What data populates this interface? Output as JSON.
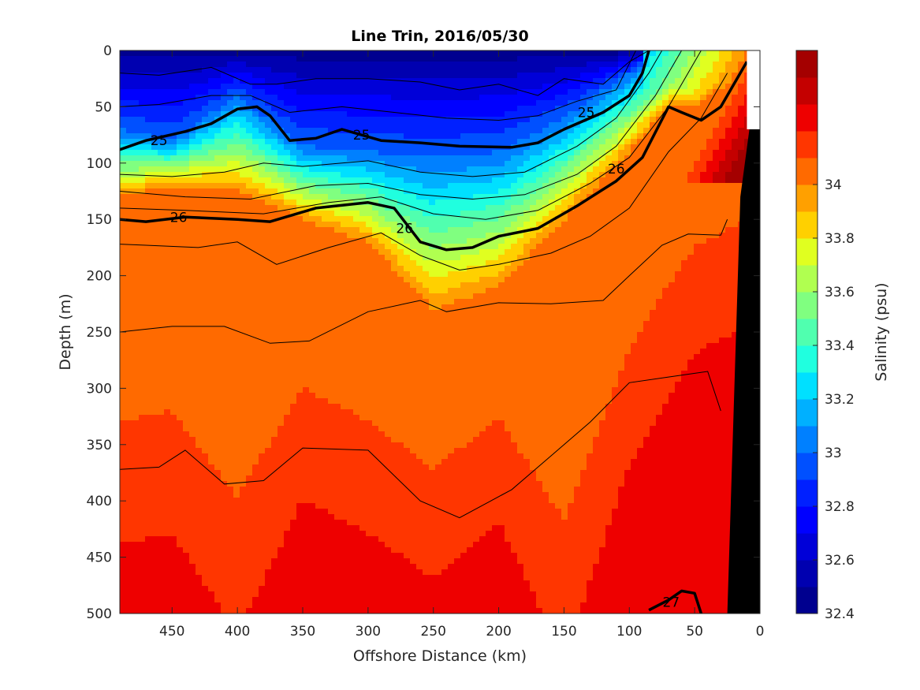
{
  "chart_data": {
    "type": "heatmap",
    "title": "Line Trin, 2016/05/30",
    "xlabel": "Offshore Distance (km)",
    "ylabel": "Depth (m)",
    "colorbar_label": "Salinity (psu)",
    "xlim": [
      490,
      0
    ],
    "ylim": [
      500,
      0
    ],
    "x_reversed": true,
    "y_reversed": true,
    "xticks": [
      450,
      400,
      350,
      300,
      250,
      200,
      150,
      100,
      50,
      0
    ],
    "yticks": [
      0,
      50,
      100,
      150,
      200,
      250,
      300,
      350,
      400,
      450,
      500
    ],
    "colorbar_range": [
      32.4,
      34.5
    ],
    "colorbar_ticks": [
      32.4,
      32.6,
      32.8,
      33,
      33.2,
      33.4,
      33.6,
      33.8,
      34
    ],
    "colorbar_tick_labels": [
      "32.4",
      "32.6",
      "32.8",
      "33",
      "33.2",
      "33.4",
      "33.6",
      "33.8",
      "34"
    ],
    "colormap": [
      "#00008f",
      "#0000c8",
      "#0000ff",
      "#0030ff",
      "#0060ff",
      "#0090ff",
      "#00c0ff",
      "#20f0df",
      "#50ff af",
      "#80ff80",
      "#b0ff50",
      "#e0ff20",
      "#ffd000",
      "#ffa000",
      "#ff7000",
      "#ff3c00",
      "#ee0000",
      "#c80000",
      "#a00000"
    ],
    "salinity_levels": [
      32.4,
      32.5,
      32.6,
      32.7,
      32.8,
      32.9,
      33.0,
      33.1,
      33.2,
      33.3,
      33.4,
      33.5,
      33.6,
      33.7,
      33.8,
      33.9,
      34.0,
      34.1,
      34.2,
      34.3
    ],
    "salinity_depth_profile": {
      "x": [
        490,
        450,
        400,
        350,
        300,
        250,
        200,
        150,
        100,
        70,
        50,
        15
      ],
      "s34_depth": [
        130,
        120,
        125,
        150,
        170,
        230,
        210,
        150,
        90,
        50,
        50,
        20
      ],
      "s33_depth": [
        70,
        80,
        40,
        85,
        90,
        95,
        90,
        60,
        20,
        0,
        0,
        0
      ],
      "deep_depth": [
        370,
        360,
        450,
        330,
        360,
        400,
        350,
        470,
        300,
        240,
        200,
        180
      ]
    },
    "density_contours": [
      {
        "label": "25",
        "bold": true,
        "x": [
          490,
          470,
          440,
          420,
          400,
          385,
          375,
          360,
          340,
          320,
          290,
          260,
          230,
          190,
          170,
          150,
          120,
          100,
          90,
          85
        ],
        "y": [
          88,
          80,
          72,
          65,
          52,
          50,
          58,
          80,
          78,
          70,
          80,
          82,
          85,
          86,
          82,
          70,
          55,
          40,
          20,
          0
        ]
      },
      {
        "label": "26",
        "bold": true,
        "x": [
          490,
          470,
          440,
          400,
          375,
          340,
          300,
          280,
          260,
          240,
          220,
          200,
          170,
          140,
          110,
          90,
          70,
          60,
          45,
          30,
          10
        ],
        "y": [
          150,
          152,
          148,
          150,
          152,
          140,
          135,
          140,
          170,
          177,
          175,
          165,
          158,
          138,
          116,
          95,
          50,
          55,
          62,
          50,
          10
        ]
      },
      {
        "label": "27",
        "bold": true,
        "x": [
          85,
          70,
          60,
          50,
          45
        ],
        "y": [
          497,
          488,
          480,
          482,
          500
        ]
      }
    ],
    "thin_contours": [
      {
        "x": [
          490,
          460,
          420,
          390,
          370,
          340,
          300,
          260,
          230,
          200,
          170,
          150,
          120,
          100,
          85
        ],
        "y": [
          20,
          22,
          15,
          30,
          30,
          25,
          25,
          28,
          35,
          30,
          40,
          25,
          30,
          10,
          0
        ]
      },
      {
        "x": [
          490,
          460,
          420,
          390,
          360,
          320,
          280,
          240,
          200,
          170,
          140,
          110,
          95
        ],
        "y": [
          50,
          48,
          40,
          40,
          55,
          50,
          55,
          60,
          62,
          58,
          45,
          35,
          0
        ]
      },
      {
        "x": [
          490,
          450,
          410,
          380,
          350,
          300,
          260,
          220,
          180,
          140,
          110,
          85,
          75
        ],
        "y": [
          110,
          112,
          108,
          100,
          103,
          98,
          108,
          112,
          108,
          85,
          60,
          20,
          0
        ]
      },
      {
        "x": [
          490,
          440,
          390,
          340,
          300,
          260,
          220,
          180,
          140,
          110,
          80,
          60
        ],
        "y": [
          125,
          130,
          132,
          120,
          118,
          128,
          132,
          128,
          110,
          85,
          40,
          0
        ]
      },
      {
        "x": [
          490,
          440,
          380,
          330,
          290,
          250,
          210,
          170,
          130,
          100,
          70,
          45
        ],
        "y": [
          140,
          142,
          145,
          135,
          130,
          145,
          150,
          142,
          118,
          95,
          50,
          0
        ]
      },
      {
        "x": [
          490,
          470,
          430,
          400,
          370,
          330,
          290,
          260,
          230,
          200,
          160,
          130,
          100,
          70,
          45,
          25
        ],
        "y": [
          172,
          173,
          175,
          170,
          190,
          175,
          162,
          182,
          195,
          190,
          180,
          165,
          140,
          90,
          60,
          20
        ]
      },
      {
        "x": [
          490,
          450,
          410,
          375,
          345,
          300,
          260,
          240,
          200,
          160,
          120,
          100,
          75,
          55,
          30,
          25
        ],
        "y": [
          250,
          245,
          245,
          260,
          258,
          232,
          222,
          232,
          224,
          225,
          222,
          200,
          173,
          163,
          164,
          150
        ]
      },
      {
        "x": [
          490,
          460,
          440,
          410,
          380,
          350,
          300,
          260,
          230,
          190,
          160,
          130,
          100,
          70,
          40,
          30
        ],
        "y": [
          372,
          370,
          355,
          385,
          382,
          353,
          355,
          400,
          415,
          390,
          360,
          330,
          295,
          290,
          285,
          320
        ]
      }
    ],
    "contour_labels": [
      {
        "text": "25",
        "x": 460,
        "y": 80
      },
      {
        "text": "25",
        "x": 305,
        "y": 75
      },
      {
        "text": "25",
        "x": 133,
        "y": 55
      },
      {
        "text": "26",
        "x": 445,
        "y": 148
      },
      {
        "text": "26",
        "x": 272,
        "y": 158
      },
      {
        "text": "26",
        "x": 110,
        "y": 105
      },
      {
        "text": "27",
        "x": 68,
        "y": 490
      }
    ],
    "topography": {
      "x": [
        25,
        0,
        0,
        15
      ],
      "y": [
        500,
        500,
        0,
        130
      ]
    },
    "grid": false,
    "legend": "colorbar-right"
  }
}
